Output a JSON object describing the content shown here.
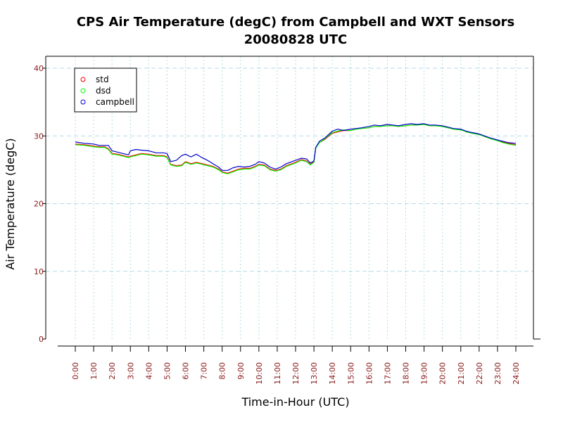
{
  "chart_data": {
    "type": "line",
    "title": "CPS Air Temperature (degC) from Campbell and WXT Sensors",
    "subtitle": "20080828  UTC",
    "xlabel": "Time-in-Hour (UTC)",
    "ylabel": "Air Temperature (degC)",
    "xlim": [
      0,
      24
    ],
    "ylim": [
      0,
      40
    ],
    "grid": true,
    "legend_position": "top-left",
    "x_ticks": [
      0,
      1,
      2,
      3,
      4,
      5,
      6,
      7,
      8,
      9,
      10,
      11,
      12,
      13,
      14,
      15,
      16,
      17,
      18,
      19,
      20,
      21,
      22,
      23,
      24
    ],
    "x_tick_labels": [
      "0:00",
      "1:00",
      "2:00",
      "3:00",
      "4:00",
      "5:00",
      "6:00",
      "7:00",
      "8:00",
      "9:00",
      "10:00",
      "11:00",
      "12:00",
      "13:00",
      "14:00",
      "15:00",
      "16:00",
      "17:00",
      "18:00",
      "19:00",
      "20:00",
      "21:00",
      "22:00",
      "23:00",
      "24:00"
    ],
    "y_ticks": [
      0,
      10,
      20,
      30,
      40
    ],
    "y_tick_labels": [
      "0",
      "10",
      "20",
      "30",
      "40"
    ],
    "series": [
      {
        "name": "std",
        "color": "#ff0000",
        "x": [
          0,
          0.5,
          1,
          1.3,
          1.6,
          1.8,
          2,
          2.3,
          2.6,
          2.9,
          3,
          3.3,
          3.6,
          4,
          4.4,
          4.8,
          5,
          5.2,
          5.5,
          5.8,
          6,
          6.3,
          6.6,
          6.9,
          7.2,
          7.5,
          7.8,
          8,
          8.3,
          8.6,
          8.9,
          9.2,
          9.5,
          9.8,
          10,
          10.3,
          10.6,
          10.9,
          11.2,
          11.5,
          11.8,
          12,
          12.3,
          12.6,
          12.8,
          13,
          13.1,
          13.3,
          13.6,
          14,
          14.3,
          14.6,
          15,
          15.3,
          15.6,
          16,
          16.3,
          16.6,
          17,
          17.3,
          17.6,
          18,
          18.3,
          18.6,
          19,
          19.3,
          19.6,
          20,
          20.3,
          20.6,
          21,
          21.3,
          21.6,
          22,
          22.3,
          22.6,
          23,
          23.3,
          23.6,
          24
        ],
        "values": [
          28.8,
          28.7,
          28.5,
          28.4,
          28.4,
          28.1,
          27.4,
          27.3,
          27.1,
          26.9,
          27.0,
          27.2,
          27.4,
          27.3,
          27.1,
          27.1,
          26.9,
          25.8,
          25.6,
          25.7,
          26.2,
          25.9,
          26.1,
          25.9,
          25.7,
          25.5,
          25.1,
          24.7,
          24.5,
          24.8,
          25.1,
          25.2,
          25.2,
          25.5,
          25.8,
          25.7,
          25.1,
          24.9,
          25.1,
          25.6,
          25.9,
          26.1,
          26.5,
          26.3,
          25.8,
          26.2,
          28.3,
          29.0,
          29.5,
          30.4,
          30.6,
          30.8,
          30.8,
          31.0,
          31.1,
          31.2,
          31.4,
          31.4,
          31.5,
          31.5,
          31.4,
          31.5,
          31.6,
          31.6,
          31.7,
          31.5,
          31.5,
          31.4,
          31.2,
          31.0,
          30.9,
          30.6,
          30.4,
          30.2,
          29.9,
          29.6,
          29.3,
          29.1,
          28.9,
          28.7
        ]
      },
      {
        "name": "dsd",
        "color": "#00ff00",
        "x": [
          0,
          0.5,
          1,
          1.3,
          1.6,
          1.8,
          2,
          2.3,
          2.6,
          2.9,
          3,
          3.3,
          3.6,
          4,
          4.4,
          4.8,
          5,
          5.2,
          5.5,
          5.8,
          6,
          6.3,
          6.6,
          6.9,
          7.2,
          7.5,
          7.8,
          8,
          8.3,
          8.6,
          8.9,
          9.2,
          9.5,
          9.8,
          10,
          10.3,
          10.6,
          10.9,
          11.2,
          11.5,
          11.8,
          12,
          12.3,
          12.6,
          12.8,
          13,
          13.1,
          13.3,
          13.6,
          14,
          14.3,
          14.6,
          15,
          15.3,
          15.6,
          16,
          16.3,
          16.6,
          17,
          17.3,
          17.6,
          18,
          18.3,
          18.6,
          19,
          19.3,
          19.6,
          20,
          20.3,
          20.6,
          21,
          21.3,
          21.6,
          22,
          22.3,
          22.6,
          23,
          23.3,
          23.6,
          24
        ],
        "values": [
          28.7,
          28.6,
          28.4,
          28.3,
          28.3,
          28.0,
          27.3,
          27.2,
          27.0,
          26.8,
          26.9,
          27.1,
          27.3,
          27.2,
          27.0,
          27.0,
          26.8,
          25.7,
          25.5,
          25.6,
          26.1,
          25.8,
          26.0,
          25.8,
          25.6,
          25.4,
          25.0,
          24.6,
          24.4,
          24.7,
          25.0,
          25.1,
          25.1,
          25.4,
          25.7,
          25.6,
          25.0,
          24.8,
          25.0,
          25.5,
          25.8,
          26.0,
          26.4,
          26.2,
          25.7,
          26.1,
          28.2,
          29.0,
          29.6,
          30.5,
          30.7,
          30.9,
          30.8,
          31.0,
          31.1,
          31.2,
          31.4,
          31.4,
          31.5,
          31.5,
          31.4,
          31.5,
          31.6,
          31.6,
          31.7,
          31.5,
          31.5,
          31.4,
          31.2,
          31.0,
          30.9,
          30.6,
          30.4,
          30.2,
          29.9,
          29.6,
          29.3,
          29.0,
          28.8,
          28.6
        ]
      },
      {
        "name": "campbell",
        "color": "#0000cc",
        "x": [
          0,
          0.5,
          1,
          1.3,
          1.6,
          1.8,
          2,
          2.3,
          2.6,
          2.9,
          3,
          3.3,
          3.6,
          4,
          4.4,
          4.8,
          5,
          5.2,
          5.5,
          5.8,
          6,
          6.3,
          6.6,
          6.9,
          7.2,
          7.5,
          7.8,
          8,
          8.3,
          8.6,
          8.9,
          9.2,
          9.5,
          9.8,
          10,
          10.3,
          10.6,
          10.9,
          11.2,
          11.5,
          11.8,
          12,
          12.3,
          12.6,
          12.8,
          13,
          13.1,
          13.3,
          13.6,
          14,
          14.3,
          14.6,
          15,
          15.3,
          15.6,
          16,
          16.3,
          16.6,
          17,
          17.3,
          17.6,
          18,
          18.3,
          18.6,
          19,
          19.3,
          19.6,
          20,
          20.3,
          20.6,
          21,
          21.3,
          21.6,
          22,
          22.3,
          22.6,
          23,
          23.3,
          23.6,
          24
        ],
        "values": [
          29.1,
          28.9,
          28.8,
          28.6,
          28.6,
          28.6,
          27.8,
          27.6,
          27.4,
          27.2,
          27.8,
          28.0,
          27.9,
          27.8,
          27.5,
          27.5,
          27.4,
          26.2,
          26.4,
          27.1,
          27.3,
          26.9,
          27.3,
          26.8,
          26.4,
          25.9,
          25.4,
          24.9,
          24.9,
          25.3,
          25.5,
          25.4,
          25.5,
          25.8,
          26.2,
          26.0,
          25.4,
          25.1,
          25.4,
          25.9,
          26.2,
          26.4,
          26.7,
          26.6,
          26.0,
          26.3,
          28.3,
          29.2,
          29.7,
          30.7,
          31.0,
          30.8,
          31.0,
          31.1,
          31.2,
          31.4,
          31.6,
          31.5,
          31.7,
          31.6,
          31.5,
          31.7,
          31.8,
          31.7,
          31.8,
          31.6,
          31.6,
          31.5,
          31.3,
          31.1,
          31.0,
          30.7,
          30.5,
          30.3,
          30.0,
          29.7,
          29.4,
          29.2,
          29.0,
          28.9
        ]
      }
    ]
  }
}
